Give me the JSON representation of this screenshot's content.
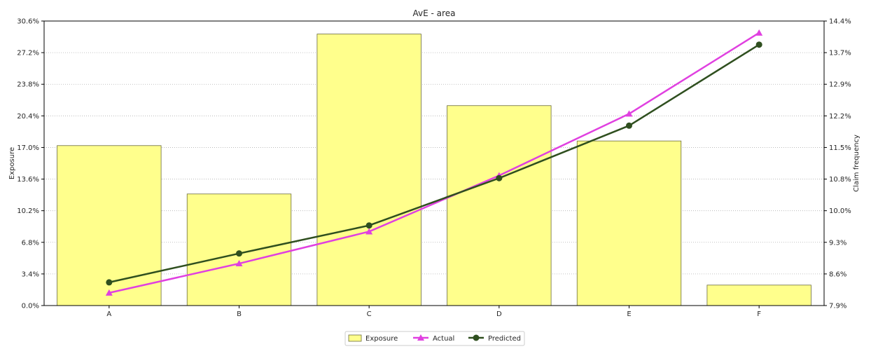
{
  "chart_data": {
    "type": "bar",
    "title": "AvE - area",
    "categories": [
      "A",
      "B",
      "C",
      "D",
      "E",
      "F"
    ],
    "y_left": {
      "label": "Exposure",
      "lim": [
        0.0,
        30.6
      ],
      "ticks": [
        "0.0%",
        "3.4%",
        "6.8%",
        "10.2%",
        "13.6%",
        "17.0%",
        "20.4%",
        "23.8%",
        "27.2%",
        "30.6%"
      ]
    },
    "y_right": {
      "label": "Claim frequency",
      "lim": [
        7.9,
        14.4
      ],
      "ticks": [
        "7.9%",
        "8.6%",
        "9.3%",
        "10.0%",
        "10.8%",
        "11.5%",
        "12.2%",
        "12.9%",
        "13.7%",
        "14.4%"
      ]
    },
    "series": [
      {
        "name": "Exposure",
        "kind": "bar",
        "axis": "left",
        "values": [
          17.2,
          12.0,
          29.2,
          21.5,
          17.7,
          2.2
        ],
        "color": "#ffff8c",
        "edge": "#6b6b3a"
      },
      {
        "name": "Actual",
        "kind": "line",
        "axis": "right",
        "marker": "triangle",
        "values": [
          8.19,
          8.86,
          9.59,
          10.87,
          12.28,
          14.13
        ],
        "color": "#e040e0"
      },
      {
        "name": "Predicted",
        "kind": "line",
        "axis": "right",
        "marker": "circle",
        "values": [
          8.43,
          9.09,
          9.73,
          10.81,
          12.01,
          13.86
        ],
        "color": "#2f4f1f"
      }
    ],
    "grid": "horizontal-dotted",
    "legend_position": "bottom-center"
  }
}
